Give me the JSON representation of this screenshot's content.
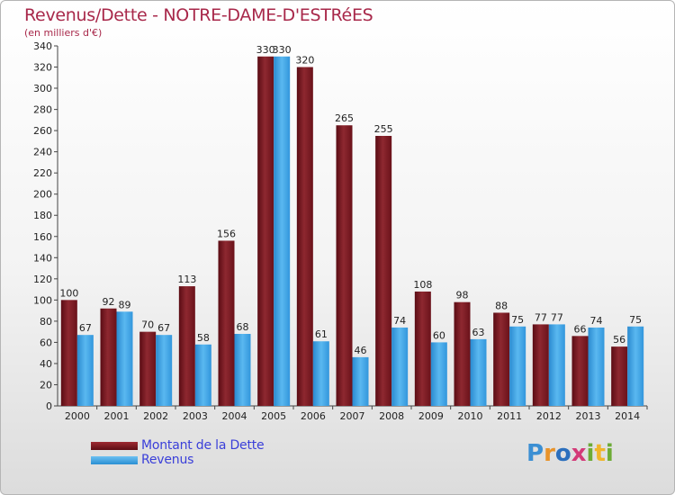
{
  "chart_data": {
    "type": "bar",
    "title": "Revenus/Dette - NOTRE-DAME-D'ESTRéES",
    "ylabel": "(en milliers d'€)",
    "categories": [
      "2000",
      "2001",
      "2002",
      "2003",
      "2004",
      "2005",
      "2006",
      "2007",
      "2008",
      "2009",
      "2010",
      "2011",
      "2012",
      "2013",
      "2014"
    ],
    "series": [
      {
        "name": "Montant de la Dette",
        "values": [
          100,
          92,
          70,
          113,
          156,
          330,
          320,
          265,
          255,
          108,
          98,
          88,
          77,
          66,
          56
        ]
      },
      {
        "name": "Revenus",
        "values": [
          67,
          89,
          67,
          58,
          68,
          330,
          61,
          46,
          74,
          60,
          63,
          75,
          77,
          74,
          75
        ]
      }
    ],
    "ylim": [
      0,
      340
    ],
    "yticks": [
      0,
      20,
      40,
      60,
      80,
      100,
      120,
      140,
      160,
      180,
      200,
      220,
      240,
      260,
      280,
      300,
      320,
      340
    ],
    "grid": false
  },
  "legend": {
    "dette_label": "Montant de la Dette",
    "revenus_label": "Revenus"
  },
  "logo": {
    "letters": [
      "P",
      "r",
      "o",
      "x",
      "i",
      "t",
      "i"
    ]
  },
  "colors": {
    "dette": "#7a1a22",
    "revenus": "#3b9de2",
    "title": "#a8284a",
    "legend_text": "#3a3fd9"
  }
}
